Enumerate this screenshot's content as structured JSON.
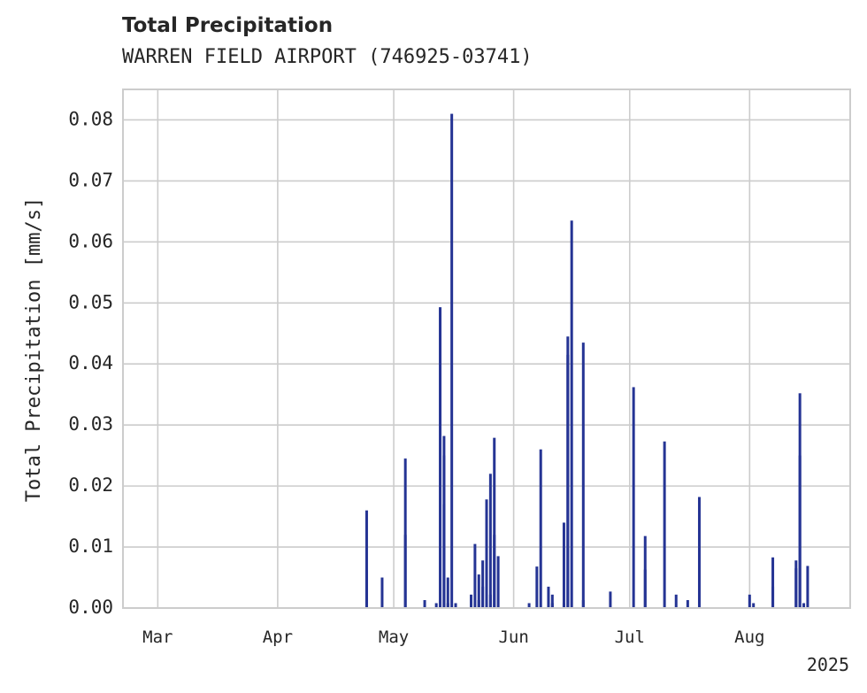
{
  "chart_data": {
    "type": "bar",
    "title": "Total Precipitation",
    "subtitle": "WARREN FIELD AIRPORT (746925-03741)",
    "ylabel": "Total Precipitation [mm/s]",
    "xlabel": "",
    "ylim": [
      0,
      0.085
    ],
    "xlim": [
      "2025-02-20",
      "2025-08-27"
    ],
    "yticks": [
      0.0,
      0.01,
      0.02,
      0.03,
      0.04,
      0.05,
      0.06,
      0.07,
      0.08
    ],
    "ytick_labels": [
      "0.00",
      "0.01",
      "0.02",
      "0.03",
      "0.04",
      "0.05",
      "0.06",
      "0.07",
      "0.08"
    ],
    "xticks": [
      "2025-03-01",
      "2025-04-01",
      "2025-05-01",
      "2025-06-01",
      "2025-07-01",
      "2025-08-01"
    ],
    "xtick_labels": [
      "Mar",
      "Apr",
      "May",
      "Jun",
      "Jul",
      "Aug"
    ],
    "x_offset_label": "2025",
    "grid": true,
    "bar_color": "#253494",
    "series": [
      {
        "x": [
          "2025-04-24",
          "2025-04-24",
          "2025-04-28",
          "2025-05-04",
          "2025-05-04",
          "2025-05-09",
          "2025-05-12",
          "2025-05-13",
          "2025-05-14",
          "2025-05-14",
          "2025-05-14",
          "2025-05-15",
          "2025-05-15",
          "2025-05-16",
          "2025-05-17",
          "2025-05-21",
          "2025-05-22",
          "2025-05-23",
          "2025-05-23",
          "2025-05-24",
          "2025-05-24",
          "2025-05-25",
          "2025-05-25",
          "2025-05-26",
          "2025-05-26",
          "2025-05-27",
          "2025-05-27",
          "2025-05-28",
          "2025-06-05",
          "2025-06-07",
          "2025-06-08",
          "2025-06-10",
          "2025-06-11",
          "2025-06-11",
          "2025-06-14",
          "2025-06-14",
          "2025-06-15",
          "2025-06-15",
          "2025-06-16",
          "2025-06-19",
          "2025-06-19",
          "2025-06-26",
          "2025-07-02",
          "2025-07-05",
          "2025-07-05",
          "2025-07-10",
          "2025-07-13",
          "2025-07-16",
          "2025-07-19",
          "2025-08-01",
          "2025-08-02",
          "2025-08-07",
          "2025-08-07",
          "2025-08-13",
          "2025-08-13",
          "2025-08-14",
          "2025-08-14",
          "2025-08-15",
          "2025-08-16"
        ],
        "values": [
          0.016,
          0.0062,
          0.005,
          0.0245,
          0.012,
          0.0013,
          0.0008,
          0.0493,
          0.0282,
          0.025,
          0.017,
          0.0008,
          0.005,
          0.081,
          0.0008,
          0.0022,
          0.0105,
          0.0013,
          0.0055,
          0.0035,
          0.0078,
          0.0105,
          0.0178,
          0.0022,
          0.022,
          0.0279,
          0.012,
          0.0085,
          0.0008,
          0.0068,
          0.026,
          0.0035,
          0.0022,
          0.0008,
          0.014,
          0.0008,
          0.0415,
          0.0445,
          0.0635,
          0.0435,
          0.0013,
          0.0027,
          0.0362,
          0.0118,
          0.0063,
          0.0273,
          0.0022,
          0.0013,
          0.0182,
          0.0022,
          0.0008,
          0.0083,
          0.0035,
          0.0078,
          0.0065,
          0.0352,
          0.025,
          0.0008,
          0.0069
        ]
      }
    ]
  }
}
